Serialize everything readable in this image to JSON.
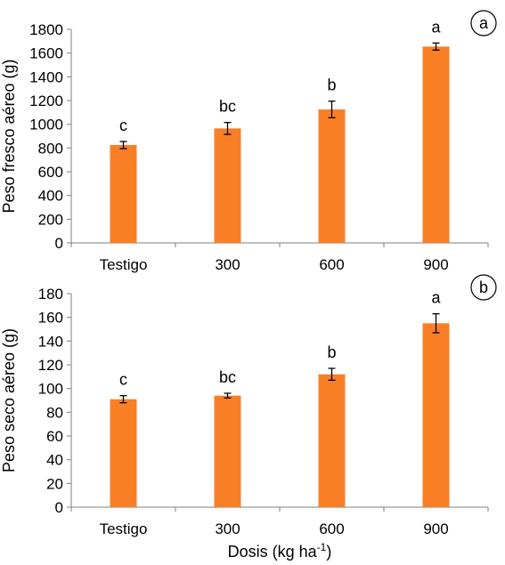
{
  "chart_data": [
    {
      "type": "bar",
      "panel_label": "a",
      "categories": [
        "Testigo",
        "300",
        "600",
        "900"
      ],
      "values": [
        825,
        965,
        1125,
        1655
      ],
      "errors": [
        30,
        50,
        70,
        30
      ],
      "letters": [
        "c",
        "bc",
        "b",
        "a"
      ],
      "ylabel": "Peso fresco aéreo (g)",
      "xlabel": "",
      "ylim": [
        0,
        1800
      ],
      "yticks": [
        0,
        200,
        400,
        600,
        800,
        1000,
        1200,
        1400,
        1600,
        1800
      ],
      "bar_color": "#f97f26",
      "grid": false
    },
    {
      "type": "bar",
      "panel_label": "b",
      "categories": [
        "Testigo",
        "300",
        "600",
        "900"
      ],
      "values": [
        91,
        94,
        112,
        155
      ],
      "errors": [
        3,
        2,
        5,
        8
      ],
      "letters": [
        "c",
        "bc",
        "b",
        "a"
      ],
      "ylabel": "Peso seco aéreo (g)",
      "xlabel_main": "Dosis (kg ha",
      "xlabel_sup": "-1",
      "xlabel_end": ")",
      "ylim": [
        0,
        180
      ],
      "yticks": [
        0,
        20,
        40,
        60,
        80,
        100,
        120,
        140,
        160,
        180
      ],
      "bar_color": "#f97f26",
      "grid": false
    }
  ]
}
